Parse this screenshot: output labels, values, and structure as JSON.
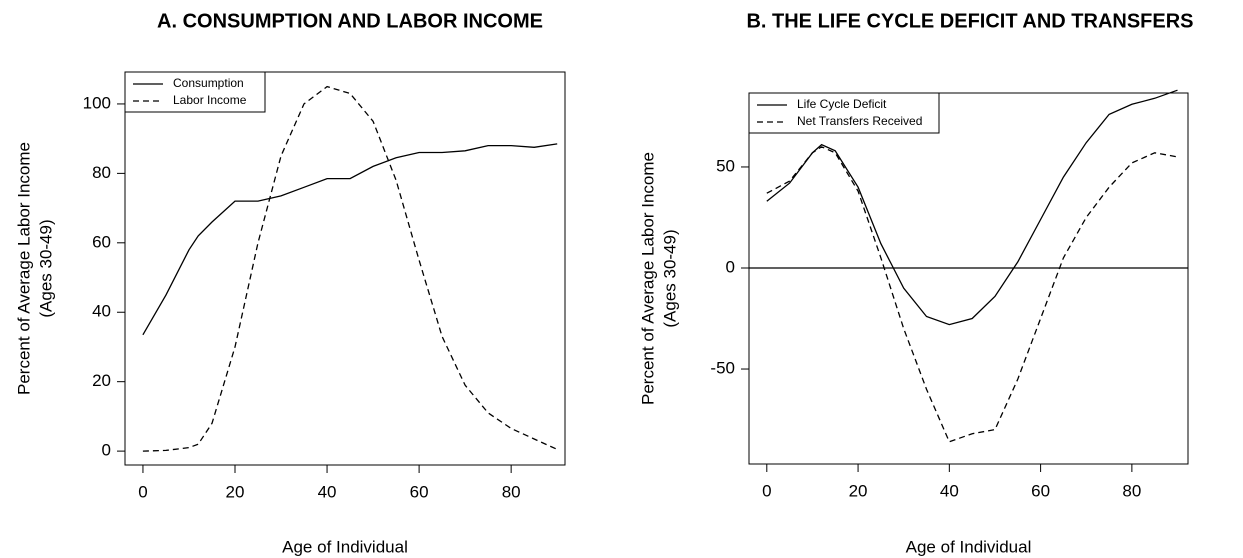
{
  "chart_data": [
    {
      "type": "line",
      "title": "A. CONSUMPTION AND LABOR INCOME",
      "xlabel": "Age of Individual",
      "ylabel": [
        "Percent of Average Labor Income",
        "(Ages 30-49)"
      ],
      "x": [
        0,
        5,
        10,
        12,
        15,
        20,
        25,
        30,
        35,
        40,
        45,
        50,
        55,
        60,
        65,
        70,
        75,
        80,
        85,
        90
      ],
      "series": [
        {
          "name": "Consumption",
          "color": "#000000",
          "dash": "solid",
          "values": [
            33.5,
            45,
            58,
            62,
            66,
            72,
            72,
            73.5,
            76,
            78.5,
            78.5,
            82,
            84.5,
            86,
            86,
            86.5,
            88,
            88,
            87.5,
            88.5
          ]
        },
        {
          "name": "Labor Income",
          "color": "#000000",
          "dash": "dashed",
          "values": [
            0,
            0.2,
            1,
            2,
            8,
            30,
            60,
            85,
            100,
            105,
            103,
            95,
            78,
            55,
            33,
            19,
            11,
            6.5,
            3.5,
            0.5
          ]
        }
      ],
      "xlim": [
        -3.9,
        91.7
      ],
      "ylim": [
        -4,
        109.2
      ],
      "xticks": [
        0,
        20,
        40,
        60,
        80
      ],
      "yticks": [
        0,
        20,
        40,
        60,
        80,
        100
      ],
      "legend": "top-left"
    },
    {
      "type": "line",
      "title": "B. THE LIFE CYCLE DEFICIT AND TRANSFERS",
      "xlabel": "Age of Individual",
      "ylabel": [
        "Percent of Average Labor Income",
        "(Ages 30-49)"
      ],
      "x": [
        0,
        5,
        10,
        12,
        15,
        20,
        25,
        30,
        35,
        40,
        45,
        50,
        55,
        60,
        65,
        70,
        75,
        80,
        85,
        90
      ],
      "series": [
        {
          "name": "Life Cycle Deficit",
          "color": "#000000",
          "dash": "solid",
          "values": [
            33,
            42,
            57,
            61,
            58,
            40,
            12,
            -10,
            -24,
            -28,
            -25,
            -14,
            3,
            24,
            45,
            62,
            76,
            81,
            84,
            88
          ]
        },
        {
          "name": "Net Transfers Received",
          "color": "#000000",
          "dash": "dashed",
          "values": [
            37,
            43,
            57,
            60,
            57,
            38,
            5,
            -30,
            -60,
            -86,
            -82,
            -80,
            -55,
            -25,
            5,
            25,
            40,
            52,
            57,
            55
          ]
        }
      ],
      "xlim": [
        -3.9,
        92.3
      ],
      "ylim": [
        -97,
        86.6
      ],
      "xticks": [
        0,
        20,
        40,
        60,
        80
      ],
      "yticks": [
        -50,
        0,
        50
      ],
      "hline": 0,
      "legend": "top-left"
    }
  ]
}
